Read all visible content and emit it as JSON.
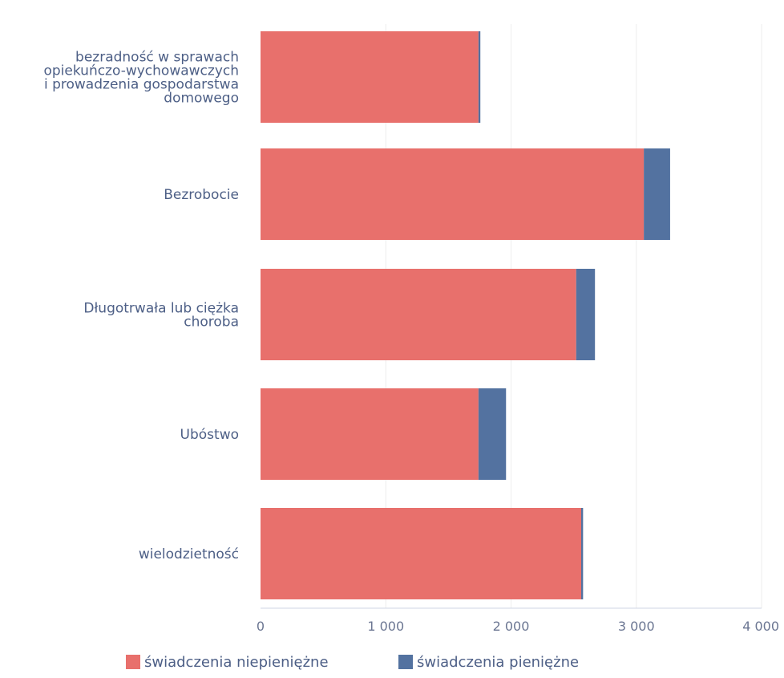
{
  "chart_data": {
    "type": "bar",
    "orientation": "horizontal",
    "stacked": true,
    "categories": [
      [
        "bezradność w sprawach",
        "opiekuńczo-wychowawczych",
        "i prowadzenia gospodarstwa",
        "domowego"
      ],
      [
        "Bezrobocie"
      ],
      [
        "Długotrwała lub ciężka",
        "choroba"
      ],
      [
        "Ubóstwo"
      ],
      [
        "wielodzietność"
      ]
    ],
    "series": [
      {
        "name": "świadczenia niepieniężne",
        "color": "#e8706c",
        "values": [
          1740,
          3060,
          2520,
          1740,
          2560
        ]
      },
      {
        "name": "świadczenia pieniężne",
        "color": "#5372a0",
        "values": [
          15,
          210,
          150,
          220,
          15
        ]
      }
    ],
    "xlim": [
      0,
      4000
    ],
    "xticks": [
      0,
      1000,
      2000,
      3000,
      4000
    ],
    "xtick_labels": [
      "0",
      "1 000",
      "2 000",
      "3 000",
      "4 000"
    ],
    "grid": true,
    "legend_position": "bottom-left"
  }
}
